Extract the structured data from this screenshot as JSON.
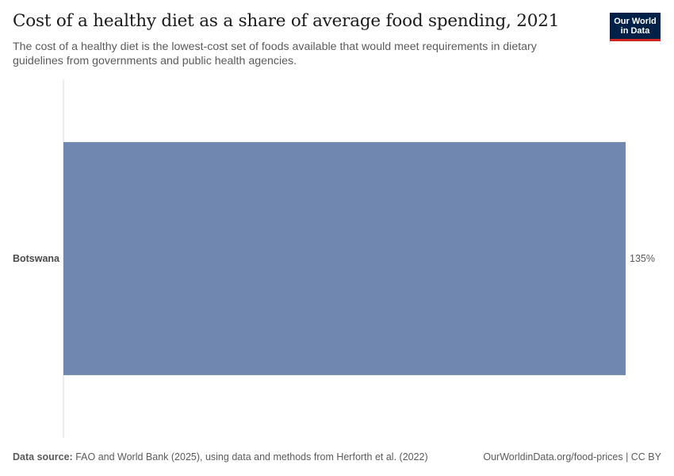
{
  "header": {
    "title": "Cost of a healthy diet as a share of average food spending, 2021",
    "subtitle": "The cost of a healthy diet is the lowest-cost set of foods available that would meet requirements in dietary guidelines from governments and public health agencies."
  },
  "logo": {
    "line1": "Our World",
    "line2": "in Data"
  },
  "footer": {
    "source_label": "Data source:",
    "source_text": "FAO and World Bank (2025), using data and methods from Herforth et al. (2022)",
    "link": "OurWorldinData.org/food-prices | CC BY"
  },
  "colors": {
    "bar": "#7088b0",
    "axis": "#d9d9d9"
  },
  "chart_data": {
    "type": "bar",
    "orientation": "horizontal",
    "categories": [
      "Botswana"
    ],
    "values": [
      135
    ],
    "value_labels": [
      "135%"
    ],
    "unit": "%",
    "xlim": [
      0,
      135
    ]
  }
}
